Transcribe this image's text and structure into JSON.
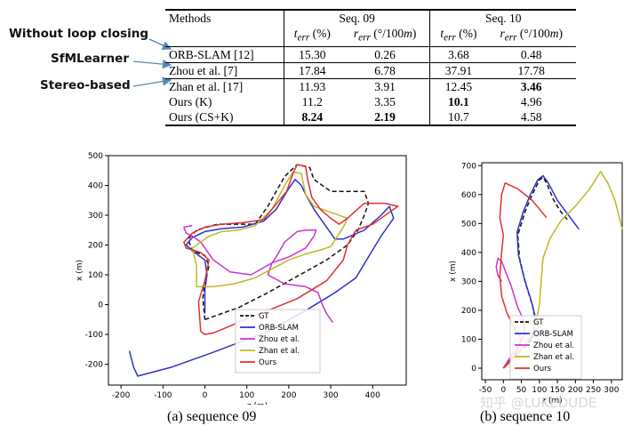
{
  "annotations": [
    "Without loop closing",
    "SfMLearner",
    "Stereo-based"
  ],
  "table": {
    "header1": [
      "Methods",
      "Seq. 09",
      "Seq. 10"
    ],
    "header2": [
      "t_err (%)",
      "r_err (°/100m)",
      "t_err (%)",
      "r_err (°/100m)"
    ],
    "rows": [
      {
        "method": "ORB-SLAM [12]",
        "values": [
          "15.30",
          "0.26",
          "3.68",
          "0.48"
        ],
        "bold": []
      },
      {
        "method": "Zhou et al. [7]",
        "values": [
          "17.84",
          "6.78",
          "37.91",
          "17.78"
        ],
        "bold": []
      },
      {
        "method": "Zhan et al. [17]",
        "values": [
          "11.93",
          "3.91",
          "12.45",
          "3.46"
        ],
        "bold": [
          3
        ]
      },
      {
        "method": "Ours (K)",
        "values": [
          "11.2",
          "3.35",
          "10.1",
          "4.96"
        ],
        "bold": [
          2
        ]
      },
      {
        "method": "Ours (CS+K)",
        "values": [
          "8.24",
          "2.19",
          "10.7",
          "4.58"
        ],
        "bold": [
          0,
          1
        ]
      }
    ]
  },
  "colors": {
    "GT": "#111111",
    "ORB-SLAM": "#3030cc",
    "Zhou et al.": "#cc33cc",
    "Zhan et al.": "#bbbb22",
    "Ours": "#e03030"
  },
  "chart_data": [
    {
      "type": "line",
      "caption": "(a) sequence 09",
      "xlabel": "z (m)",
      "ylabel": "x (m)",
      "xlim": [
        -230,
        480
      ],
      "ylim": [
        -270,
        500
      ],
      "xticks": [
        -200,
        -100,
        0,
        100,
        200,
        300,
        400
      ],
      "yticks": [
        -200,
        -100,
        0,
        100,
        200,
        300,
        400,
        500
      ],
      "legend_position": "lower-right",
      "series": [
        {
          "name": "GT",
          "dash": true,
          "points": [
            [
              0,
              -50
            ],
            [
              20,
              -40
            ],
            [
              80,
              -10
            ],
            [
              150,
              40
            ],
            [
              220,
              95
            ],
            [
              290,
              150
            ],
            [
              340,
              200
            ],
            [
              365,
              250
            ],
            [
              380,
              300
            ],
            [
              390,
              340
            ],
            [
              380,
              380
            ],
            [
              300,
              380
            ],
            [
              260,
              420
            ],
            [
              250,
              460
            ],
            [
              220,
              470
            ],
            [
              190,
              430
            ],
            [
              150,
              330
            ],
            [
              120,
              270
            ],
            [
              80,
              270
            ],
            [
              30,
              270
            ],
            [
              -20,
              250
            ],
            [
              -40,
              220
            ],
            [
              -30,
              180
            ],
            [
              0,
              165
            ],
            [
              10,
              130
            ],
            [
              0,
              80
            ],
            [
              -5,
              20
            ],
            [
              0,
              -50
            ]
          ]
        },
        {
          "name": "ORB-SLAM",
          "points": [
            [
              -180,
              -155
            ],
            [
              -170,
              -210
            ],
            [
              -160,
              -240
            ],
            [
              -80,
              -210
            ],
            [
              20,
              -160
            ],
            [
              150,
              -90
            ],
            [
              240,
              -20
            ],
            [
              310,
              40
            ],
            [
              360,
              90
            ],
            [
              390,
              160
            ],
            [
              420,
              230
            ],
            [
              450,
              290
            ],
            [
              440,
              330
            ],
            [
              420,
              300
            ],
            [
              380,
              250
            ],
            [
              330,
              220
            ],
            [
              310,
              220
            ],
            [
              300,
              240
            ],
            [
              280,
              280
            ],
            [
              260,
              320
            ],
            [
              240,
              370
            ],
            [
              230,
              400
            ],
            [
              215,
              420
            ],
            [
              200,
              390
            ],
            [
              170,
              320
            ],
            [
              140,
              280
            ],
            [
              90,
              260
            ],
            [
              40,
              255
            ],
            [
              0,
              245
            ],
            [
              -30,
              225
            ],
            [
              -45,
              200
            ],
            [
              -20,
              170
            ],
            [
              0,
              150
            ],
            [
              5,
              100
            ],
            [
              0,
              50
            ],
            [
              0,
              -30
            ]
          ]
        },
        {
          "name": "Zhou et al.",
          "points": [
            [
              -30,
              265
            ],
            [
              -50,
              260
            ],
            [
              -45,
              240
            ],
            [
              -30,
              230
            ],
            [
              -10,
              210
            ],
            [
              20,
              150
            ],
            [
              60,
              110
            ],
            [
              110,
              100
            ],
            [
              160,
              140
            ],
            [
              200,
              160
            ],
            [
              240,
              190
            ],
            [
              260,
              230
            ],
            [
              265,
              250
            ],
            [
              240,
              250
            ],
            [
              220,
              245
            ],
            [
              190,
              210
            ],
            [
              170,
              160
            ],
            [
              160,
              140
            ],
            [
              150,
              100
            ],
            [
              190,
              70
            ],
            [
              240,
              60
            ],
            [
              270,
              40
            ],
            [
              280,
              0
            ],
            [
              290,
              -30
            ],
            [
              305,
              -60
            ]
          ]
        },
        {
          "name": "Zhan et al.",
          "points": [
            [
              -20,
              60
            ],
            [
              20,
              60
            ],
            [
              70,
              70
            ],
            [
              120,
              90
            ],
            [
              160,
              120
            ],
            [
              200,
              150
            ],
            [
              240,
              170
            ],
            [
              280,
              185
            ],
            [
              300,
              195
            ],
            [
              330,
              260
            ],
            [
              340,
              290
            ],
            [
              300,
              310
            ],
            [
              260,
              330
            ],
            [
              240,
              370
            ],
            [
              230,
              440
            ],
            [
              210,
              445
            ],
            [
              190,
              400
            ],
            [
              160,
              320
            ],
            [
              120,
              265
            ],
            [
              80,
              250
            ],
            [
              40,
              245
            ],
            [
              10,
              230
            ],
            [
              -10,
              210
            ],
            [
              -30,
              190
            ],
            [
              -20,
              130
            ],
            [
              -20,
              60
            ]
          ]
        },
        {
          "name": "Ours",
          "points": [
            [
              -10,
              -90
            ],
            [
              0,
              -100
            ],
            [
              20,
              -95
            ],
            [
              80,
              -60
            ],
            [
              150,
              -20
            ],
            [
              220,
              20
            ],
            [
              290,
              80
            ],
            [
              330,
              150
            ],
            [
              340,
              200
            ],
            [
              360,
              250
            ],
            [
              400,
              270
            ],
            [
              440,
              310
            ],
            [
              460,
              330
            ],
            [
              430,
              340
            ],
            [
              380,
              340
            ],
            [
              340,
              290
            ],
            [
              320,
              270
            ],
            [
              300,
              290
            ],
            [
              275,
              320
            ],
            [
              255,
              360
            ],
            [
              245,
              420
            ],
            [
              240,
              465
            ],
            [
              220,
              470
            ],
            [
              210,
              440
            ],
            [
              195,
              380
            ],
            [
              160,
              320
            ],
            [
              140,
              285
            ],
            [
              90,
              275
            ],
            [
              40,
              270
            ],
            [
              0,
              260
            ],
            [
              -30,
              240
            ],
            [
              -50,
              210
            ],
            [
              -45,
              190
            ],
            [
              -10,
              175
            ],
            [
              10,
              150
            ],
            [
              0,
              80
            ],
            [
              -15,
              10
            ],
            [
              -10,
              -90
            ]
          ]
        }
      ]
    },
    {
      "type": "line",
      "caption": "(b) sequence 10",
      "xlabel": "z (m)",
      "ylabel": "x (m)",
      "xlim": [
        -60,
        330
      ],
      "ylim": [
        -40,
        710
      ],
      "xticks": [
        -50,
        0,
        50,
        100,
        150,
        200,
        250,
        300
      ],
      "yticks": [
        0,
        100,
        200,
        300,
        400,
        500,
        600,
        700
      ],
      "legend_position": "lower-right",
      "series": [
        {
          "name": "GT",
          "dash": true,
          "points": [
            [
              0,
              0
            ],
            [
              20,
              30
            ],
            [
              50,
              60
            ],
            [
              80,
              100
            ],
            [
              90,
              160
            ],
            [
              80,
              220
            ],
            [
              60,
              300
            ],
            [
              45,
              380
            ],
            [
              40,
              460
            ],
            [
              60,
              540
            ],
            [
              80,
              600
            ],
            [
              100,
              650
            ],
            [
              110,
              660
            ],
            [
              120,
              640
            ],
            [
              140,
              580
            ],
            [
              160,
              540
            ],
            [
              180,
              510
            ]
          ]
        },
        {
          "name": "ORB-SLAM",
          "points": [
            [
              0,
              0
            ],
            [
              25,
              35
            ],
            [
              55,
              70
            ],
            [
              80,
              110
            ],
            [
              90,
              170
            ],
            [
              78,
              230
            ],
            [
              58,
              310
            ],
            [
              42,
              390
            ],
            [
              38,
              470
            ],
            [
              55,
              540
            ],
            [
              75,
              600
            ],
            [
              95,
              650
            ],
            [
              110,
              665
            ],
            [
              125,
              640
            ],
            [
              150,
              580
            ],
            [
              180,
              530
            ],
            [
              210,
              480
            ]
          ]
        },
        {
          "name": "Zhou et al.",
          "points": [
            [
              0,
              0
            ],
            [
              20,
              40
            ],
            [
              45,
              80
            ],
            [
              60,
              120
            ],
            [
              55,
              170
            ],
            [
              40,
              210
            ],
            [
              30,
              250
            ],
            [
              20,
              290
            ],
            [
              10,
              320
            ],
            [
              -5,
              370
            ],
            [
              -15,
              380
            ],
            [
              -20,
              350
            ],
            [
              -15,
              320
            ],
            [
              -5,
              300
            ]
          ]
        },
        {
          "name": "Zhan et al.",
          "points": [
            [
              0,
              0
            ],
            [
              30,
              30
            ],
            [
              60,
              80
            ],
            [
              90,
              150
            ],
            [
              100,
              220
            ],
            [
              105,
              300
            ],
            [
              110,
              380
            ],
            [
              130,
              450
            ],
            [
              160,
              510
            ],
            [
              200,
              560
            ],
            [
              240,
              620
            ],
            [
              270,
              680
            ],
            [
              290,
              640
            ],
            [
              310,
              580
            ],
            [
              330,
              480
            ]
          ]
        },
        {
          "name": "Ours",
          "points": [
            [
              0,
              0
            ],
            [
              30,
              40
            ],
            [
              50,
              100
            ],
            [
              30,
              140
            ],
            [
              10,
              190
            ],
            [
              -5,
              250
            ],
            [
              -10,
              320
            ],
            [
              -5,
              400
            ],
            [
              0,
              460
            ],
            [
              -10,
              520
            ],
            [
              -5,
              600
            ],
            [
              5,
              640
            ],
            [
              40,
              620
            ],
            [
              80,
              580
            ],
            [
              120,
              520
            ]
          ]
        }
      ]
    }
  ],
  "watermark": "知乎 @LUKEDUDE"
}
